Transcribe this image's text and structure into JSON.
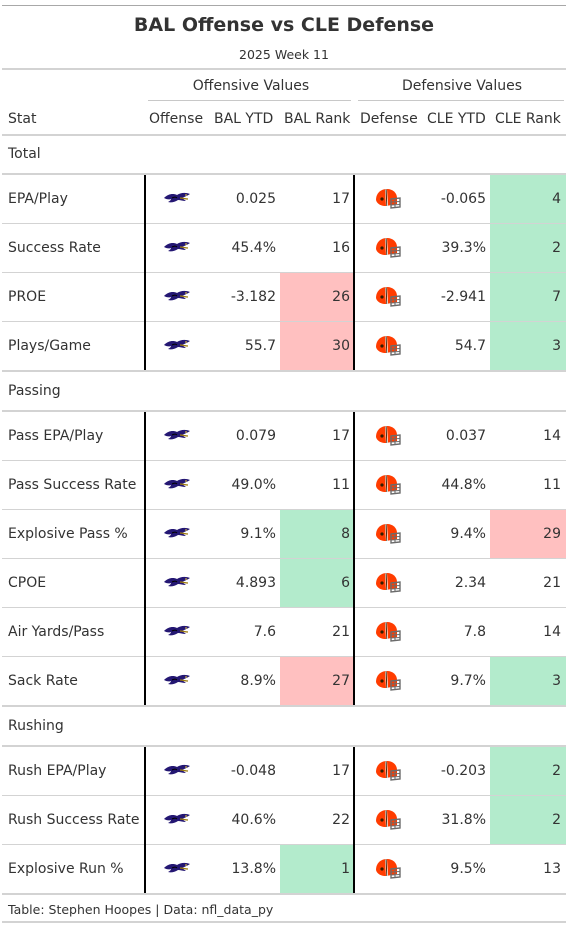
{
  "title": "BAL Offense vs CLE Defense",
  "subtitle": "2025 Week 11",
  "spanners": {
    "offensive": "Offensive Values",
    "defensive": "Defensive Values"
  },
  "columns": [
    "Stat",
    "Offense",
    "BAL YTD",
    "BAL Rank",
    "Defense",
    "CLE YTD",
    "CLE Rank"
  ],
  "icons": {
    "offense": "ravens-logo-icon",
    "defense": "browns-helmet-icon"
  },
  "colors": {
    "good_rank": "#b3ebcc",
    "bad_rank": "#ffc0c0",
    "ravens_purple": "#241773",
    "browns_orange": "#ff3c00",
    "browns_brown": "#311d00"
  },
  "groups": [
    {
      "label": "Total",
      "rows": [
        {
          "stat": "EPA/Play",
          "bal_ytd": "0.025",
          "bal_rank": "17",
          "bal_fill": "",
          "cle_ytd": "-0.065",
          "cle_rank": "4",
          "cle_fill": "good"
        },
        {
          "stat": "Success Rate",
          "bal_ytd": "45.4%",
          "bal_rank": "16",
          "bal_fill": "",
          "cle_ytd": "39.3%",
          "cle_rank": "2",
          "cle_fill": "good"
        },
        {
          "stat": "PROE",
          "bal_ytd": "-3.182",
          "bal_rank": "26",
          "bal_fill": "bad",
          "cle_ytd": "-2.941",
          "cle_rank": "7",
          "cle_fill": "good"
        },
        {
          "stat": "Plays/Game",
          "bal_ytd": "55.7",
          "bal_rank": "30",
          "bal_fill": "bad",
          "cle_ytd": "54.7",
          "cle_rank": "3",
          "cle_fill": "good"
        }
      ]
    },
    {
      "label": "Passing",
      "rows": [
        {
          "stat": "Pass EPA/Play",
          "bal_ytd": "0.079",
          "bal_rank": "17",
          "bal_fill": "",
          "cle_ytd": "0.037",
          "cle_rank": "14",
          "cle_fill": ""
        },
        {
          "stat": "Pass Success Rate",
          "bal_ytd": "49.0%",
          "bal_rank": "11",
          "bal_fill": "",
          "cle_ytd": "44.8%",
          "cle_rank": "11",
          "cle_fill": ""
        },
        {
          "stat": "Explosive Pass %",
          "bal_ytd": "9.1%",
          "bal_rank": "8",
          "bal_fill": "good",
          "cle_ytd": "9.4%",
          "cle_rank": "29",
          "cle_fill": "bad"
        },
        {
          "stat": "CPOE",
          "bal_ytd": "4.893",
          "bal_rank": "6",
          "bal_fill": "good",
          "cle_ytd": "2.34",
          "cle_rank": "21",
          "cle_fill": ""
        },
        {
          "stat": "Air Yards/Pass",
          "bal_ytd": "7.6",
          "bal_rank": "21",
          "bal_fill": "",
          "cle_ytd": "7.8",
          "cle_rank": "14",
          "cle_fill": ""
        },
        {
          "stat": "Sack Rate",
          "bal_ytd": "8.9%",
          "bal_rank": "27",
          "bal_fill": "bad",
          "cle_ytd": "9.7%",
          "cle_rank": "3",
          "cle_fill": "good"
        }
      ]
    },
    {
      "label": "Rushing",
      "rows": [
        {
          "stat": "Rush EPA/Play",
          "bal_ytd": "-0.048",
          "bal_rank": "17",
          "bal_fill": "",
          "cle_ytd": "-0.203",
          "cle_rank": "2",
          "cle_fill": "good"
        },
        {
          "stat": "Rush Success Rate",
          "bal_ytd": "40.6%",
          "bal_rank": "22",
          "bal_fill": "",
          "cle_ytd": "31.8%",
          "cle_rank": "2",
          "cle_fill": "good"
        },
        {
          "stat": "Explosive Run %",
          "bal_ytd": "13.8%",
          "bal_rank": "1",
          "bal_fill": "good",
          "cle_ytd": "9.5%",
          "cle_rank": "13",
          "cle_fill": ""
        }
      ]
    }
  ],
  "source_note": "Table: Stephen Hoopes | Data: nfl_data_py"
}
